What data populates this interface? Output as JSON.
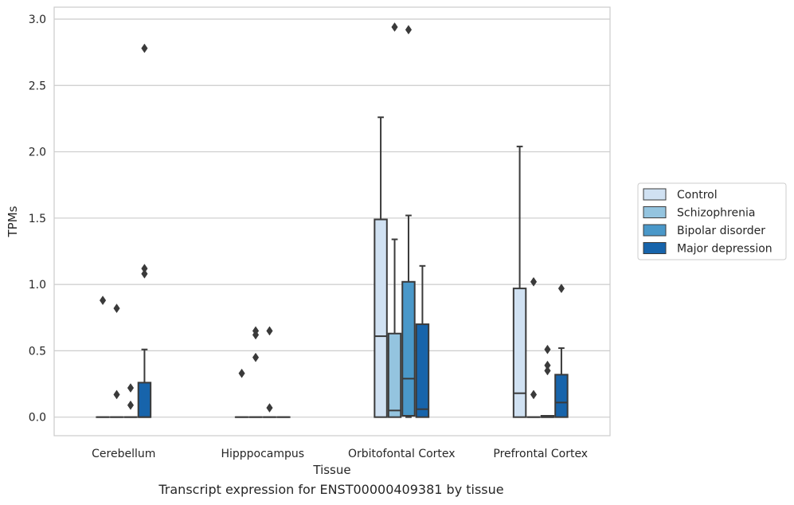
{
  "caption": "Transcript expression for ENST00000409381 by tissue",
  "chart_data": {
    "type": "box",
    "xlabel": "Tissue",
    "ylabel": "TPMs",
    "ylim": [
      -0.14,
      3.09
    ],
    "yticks": [
      0.0,
      0.5,
      1.0,
      1.5,
      2.0,
      2.5,
      3.0
    ],
    "ytick_labels": [
      "0.0",
      "0.5",
      "1.0",
      "1.5",
      "2.0",
      "2.5",
      "3.0"
    ],
    "grid": "horizontal",
    "legend_position": "right",
    "categories": [
      "Cerebellum",
      "Hipppocampus",
      "Orbitofontal Cortex",
      "Prefrontal Cortex"
    ],
    "series": [
      {
        "name": "Control",
        "color": "#d0e1f2",
        "boxes": [
          {
            "q1": 0.0,
            "median": 0.0,
            "q3": 0.0,
            "whisker_low": 0.0,
            "whisker_high": 0.0,
            "outliers": [
              0.88
            ]
          },
          {
            "q1": 0.0,
            "median": 0.0,
            "q3": 0.0,
            "whisker_low": 0.0,
            "whisker_high": 0.0,
            "outliers": [
              0.33
            ]
          },
          {
            "q1": 0.0,
            "median": 0.61,
            "q3": 1.49,
            "whisker_low": 0.0,
            "whisker_high": 2.26,
            "outliers": []
          },
          {
            "q1": 0.0,
            "median": 0.18,
            "q3": 0.97,
            "whisker_low": 0.0,
            "whisker_high": 2.04,
            "outliers": []
          }
        ]
      },
      {
        "name": "Schizophrenia",
        "color": "#94c4df",
        "boxes": [
          {
            "q1": 0.0,
            "median": 0.0,
            "q3": 0.0,
            "whisker_low": 0.0,
            "whisker_high": 0.0,
            "outliers": [
              0.82,
              0.17
            ]
          },
          {
            "q1": 0.0,
            "median": 0.0,
            "q3": 0.0,
            "whisker_low": 0.0,
            "whisker_high": 0.0,
            "outliers": [
              0.65,
              0.62,
              0.45
            ]
          },
          {
            "q1": 0.0,
            "median": 0.05,
            "q3": 0.63,
            "whisker_low": 0.0,
            "whisker_high": 1.34,
            "outliers": [
              2.94
            ]
          },
          {
            "q1": 0.0,
            "median": 0.0,
            "q3": 0.0,
            "whisker_low": 0.0,
            "whisker_high": 0.0,
            "outliers": [
              1.02,
              0.17
            ]
          }
        ]
      },
      {
        "name": "Bipolar disorder",
        "color": "#4a98c9",
        "boxes": [
          {
            "q1": 0.0,
            "median": 0.0,
            "q3": 0.0,
            "whisker_low": 0.0,
            "whisker_high": 0.0,
            "outliers": [
              0.22,
              0.09
            ]
          },
          {
            "q1": 0.0,
            "median": 0.0,
            "q3": 0.0,
            "whisker_low": 0.0,
            "whisker_high": 0.0,
            "outliers": [
              0.65,
              0.07
            ]
          },
          {
            "q1": 0.01,
            "median": 0.29,
            "q3": 1.02,
            "whisker_low": 0.0,
            "whisker_high": 1.52,
            "outliers": [
              2.92
            ]
          },
          {
            "q1": 0.0,
            "median": 0.0,
            "q3": 0.01,
            "whisker_low": 0.0,
            "whisker_high": 0.01,
            "outliers": [
              0.51,
              0.39,
              0.35
            ]
          }
        ]
      },
      {
        "name": "Major depression",
        "color": "#1764ab",
        "boxes": [
          {
            "q1": 0.0,
            "median": 0.0,
            "q3": 0.26,
            "whisker_low": 0.0,
            "whisker_high": 0.51,
            "outliers": [
              2.78,
              1.12,
              1.08
            ]
          },
          {
            "q1": 0.0,
            "median": 0.0,
            "q3": 0.0,
            "whisker_low": 0.0,
            "whisker_high": 0.0,
            "outliers": []
          },
          {
            "q1": 0.0,
            "median": 0.06,
            "q3": 0.7,
            "whisker_low": 0.0,
            "whisker_high": 1.14,
            "outliers": []
          },
          {
            "q1": 0.0,
            "median": 0.11,
            "q3": 0.32,
            "whisker_low": 0.0,
            "whisker_high": 0.52,
            "outliers": [
              0.97
            ]
          }
        ]
      }
    ]
  }
}
